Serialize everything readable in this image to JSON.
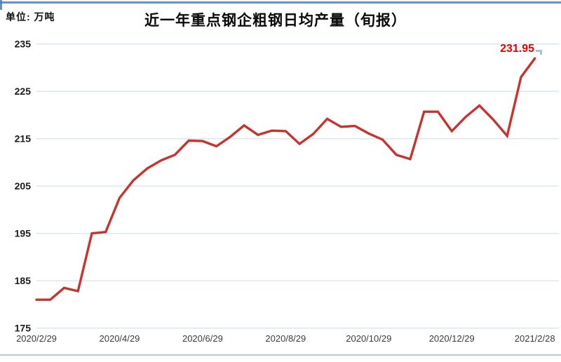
{
  "header": {
    "unit_label": "单位: 万吨"
  },
  "chart_data": {
    "type": "line",
    "title": "近一年重点钢企粗钢日均产量（旬报）",
    "unit": "万吨",
    "x_tick_labels": [
      "2020/2/29",
      "2020/4/29",
      "2020/6/29",
      "2020/8/29",
      "2020/10/29",
      "2020/12/29",
      "2021/2/28"
    ],
    "x_tick_every": 6,
    "y_tick_labels": [
      "175",
      "185",
      "195",
      "205",
      "215",
      "225",
      "235"
    ],
    "ylim": [
      175,
      235
    ],
    "y_tick_step": 10,
    "grid": "horizontal-only",
    "legend": "none",
    "series": [
      {
        "name": "重点钢企粗钢日均产量",
        "color": "#c5342e",
        "values": [
          181.0,
          181.0,
          183.5,
          182.8,
          195.0,
          195.3,
          202.5,
          206.2,
          208.7,
          210.4,
          211.6,
          214.6,
          214.5,
          213.4,
          215.4,
          217.8,
          215.8,
          216.7,
          216.6,
          213.9,
          216.0,
          219.2,
          217.5,
          217.7,
          216.1,
          214.8,
          211.6,
          210.7,
          220.7,
          220.7,
          216.6,
          219.6,
          222.0,
          219.0,
          215.6,
          228.0,
          231.95
        ]
      }
    ],
    "annotation": {
      "text": "231.95",
      "color": "#e60000",
      "point_index": 36
    },
    "colors": {
      "gridline": "#d9e5f2",
      "axis_text": "#1a1a1a",
      "x_tick_text": "#3b3b3b",
      "frame_border": "#4a7cc0",
      "bottom_border": "#b7cce4"
    }
  }
}
